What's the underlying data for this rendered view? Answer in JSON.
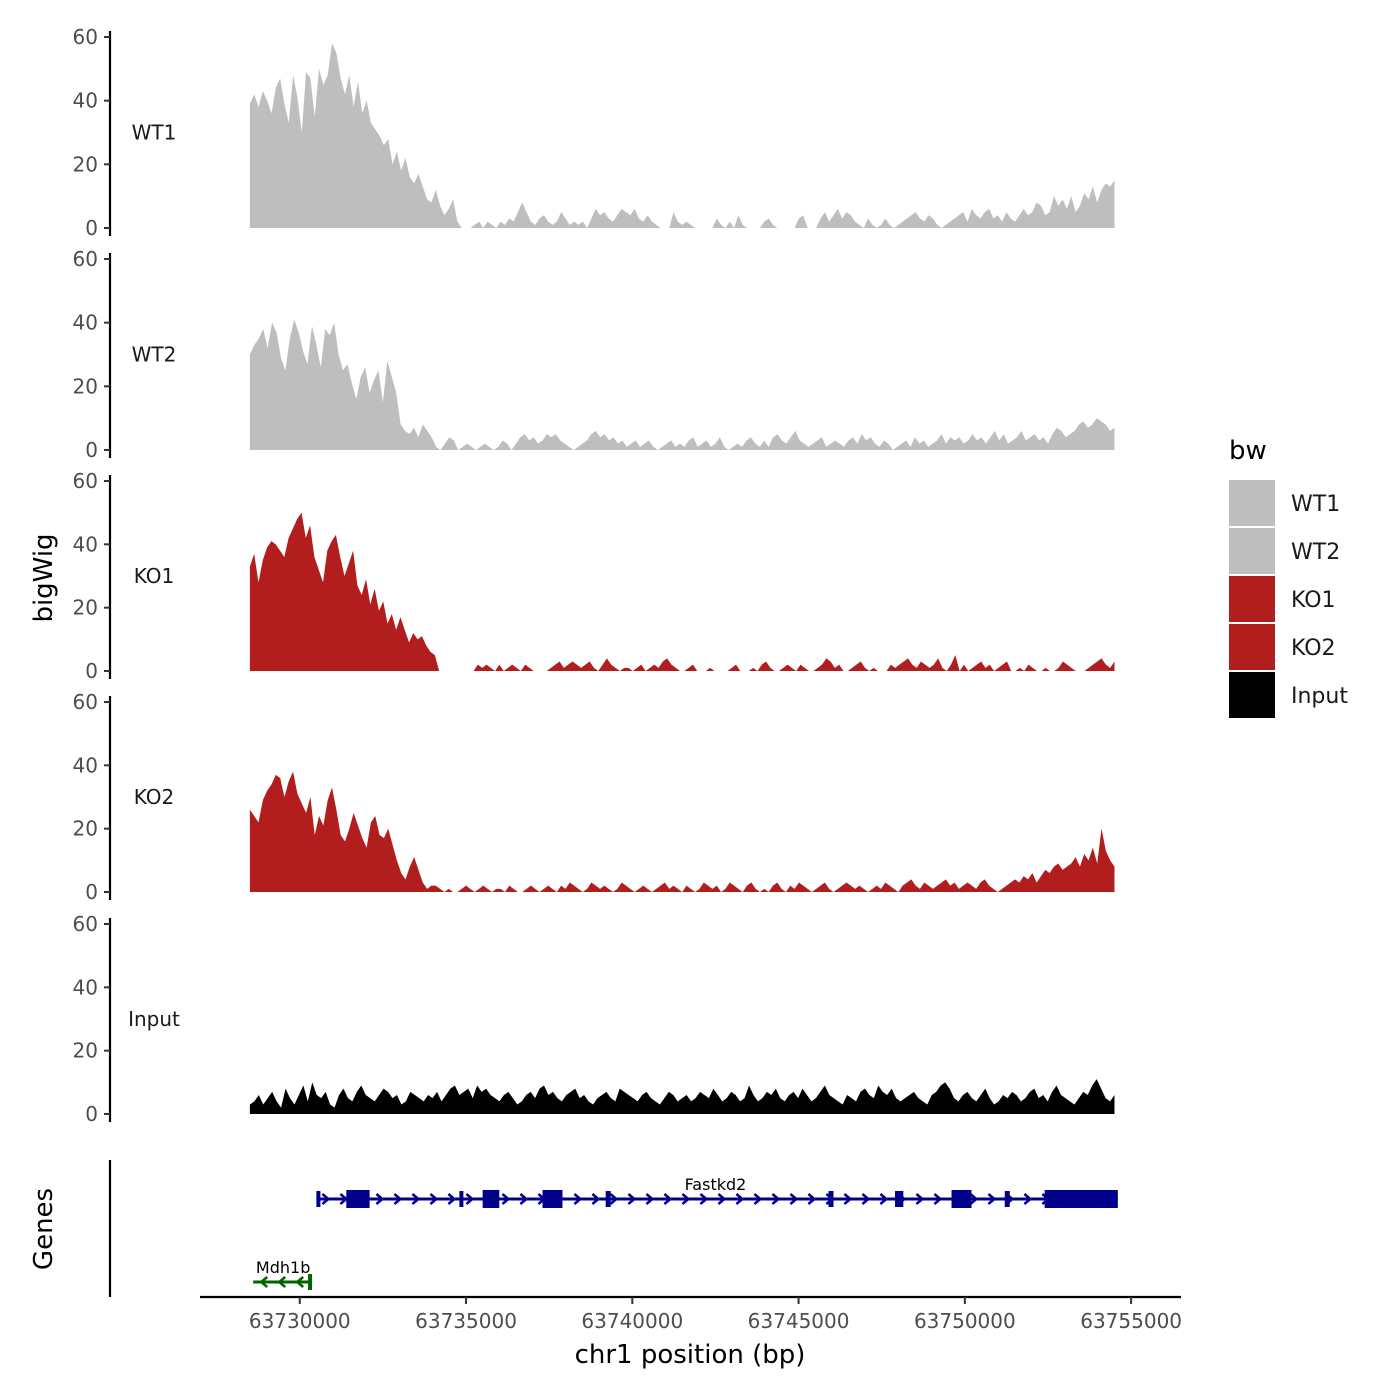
{
  "chart_data": {
    "type": "area",
    "chromosome": "chr1",
    "xlabel": "chr1 position (bp)",
    "ylabel": "bigWig",
    "genes_panel_label": "Genes",
    "xlim": [
      63727000,
      63756500
    ],
    "data_start": 63728500,
    "data_end": 63754500,
    "x_ticks": [
      63730000,
      63735000,
      63740000,
      63745000,
      63750000,
      63755000
    ],
    "x_tick_labels": [
      "63730000",
      "63735000",
      "63740000",
      "63745000",
      "63750000",
      "63755000"
    ],
    "ylim": [
      0,
      60
    ],
    "y_ticks": [
      0,
      20,
      40,
      60
    ],
    "y_tick_labels": [
      "0",
      "20",
      "40",
      "60"
    ],
    "legend": {
      "title": "bw",
      "entries": [
        {
          "label": "WT1",
          "color": "#BEBEBE"
        },
        {
          "label": "WT2",
          "color": "#BEBEBE"
        },
        {
          "label": "KO1",
          "color": "#B21E1E"
        },
        {
          "label": "KO2",
          "color": "#B21E1E"
        },
        {
          "label": "Input",
          "color": "#000000"
        }
      ]
    },
    "series": [
      {
        "name": "WT1",
        "color": "#BEBEBE",
        "values": [
          39,
          42,
          38,
          43,
          40,
          36,
          44,
          47,
          39,
          33,
          48,
          41,
          30,
          49,
          47,
          35,
          50,
          45,
          48,
          58,
          55,
          47,
          42,
          48,
          38,
          46,
          36,
          40,
          33,
          31,
          29,
          26,
          28,
          20,
          24,
          18,
          22,
          16,
          14,
          17,
          13,
          9,
          8,
          12,
          7,
          4,
          6,
          9,
          2,
          0,
          0,
          0,
          1,
          2,
          0,
          2,
          1,
          0,
          2,
          1,
          3,
          2,
          5,
          8,
          5,
          2,
          1,
          3,
          4,
          2,
          1,
          2,
          5,
          3,
          1,
          2,
          1,
          2,
          0,
          3,
          6,
          4,
          5,
          3,
          2,
          4,
          6,
          5,
          4,
          6,
          3,
          2,
          4,
          2,
          1,
          0,
          0,
          0,
          5,
          2,
          1,
          2,
          1,
          0,
          0,
          0,
          0,
          0,
          3,
          1,
          0,
          2,
          0,
          4,
          1,
          0,
          0,
          0,
          0,
          2,
          3,
          1,
          0,
          0,
          0,
          0,
          0,
          3,
          4,
          0,
          0,
          0,
          3,
          5,
          2,
          4,
          6,
          3,
          5,
          4,
          2,
          1,
          0,
          3,
          1,
          0,
          1,
          3,
          1,
          0,
          1,
          2,
          3,
          4,
          5,
          3,
          2,
          4,
          3,
          1,
          0,
          1,
          2,
          3,
          4,
          5,
          2,
          6,
          4,
          3,
          5,
          6,
          3,
          4,
          2,
          5,
          3,
          2,
          4,
          6,
          4,
          5,
          8,
          7,
          4,
          5,
          10,
          7,
          9,
          6,
          10,
          5,
          7,
          11,
          9,
          13,
          8,
          12,
          14,
          13,
          15
        ]
      },
      {
        "name": "WT2",
        "color": "#BEBEBE",
        "values": [
          30,
          33,
          35,
          38,
          32,
          40,
          37,
          29,
          25,
          35,
          41,
          37,
          31,
          27,
          39,
          33,
          26,
          38,
          36,
          40,
          30,
          25,
          27,
          21,
          16,
          23,
          26,
          18,
          22,
          25,
          15,
          28,
          23,
          18,
          8,
          6,
          5,
          7,
          4,
          8,
          6,
          4,
          1,
          0,
          2,
          4,
          3,
          0,
          1,
          2,
          1,
          0,
          1,
          2,
          1,
          0,
          1,
          3,
          2,
          0,
          2,
          4,
          5,
          3,
          4,
          2,
          3,
          5,
          4,
          5,
          3,
          2,
          1,
          0,
          1,
          2,
          3,
          5,
          6,
          4,
          5,
          3,
          4,
          2,
          3,
          1,
          2,
          3,
          1,
          2,
          3,
          1,
          0,
          1,
          2,
          3,
          1,
          2,
          1,
          3,
          4,
          1,
          2,
          3,
          1,
          2,
          4,
          1,
          0,
          1,
          2,
          1,
          3,
          4,
          2,
          1,
          3,
          1,
          4,
          5,
          3,
          2,
          4,
          6,
          3,
          2,
          1,
          2,
          3,
          4,
          1,
          2,
          3,
          2,
          1,
          3,
          4,
          2,
          5,
          3,
          4,
          2,
          1,
          3,
          2,
          0,
          1,
          2,
          3,
          1,
          4,
          2,
          3,
          1,
          2,
          3,
          5,
          2,
          4,
          3,
          4,
          2,
          3,
          5,
          3,
          4,
          2,
          4,
          6,
          3,
          5,
          2,
          3,
          4,
          6,
          3,
          4,
          5,
          3,
          4,
          2,
          5,
          7,
          6,
          4,
          5,
          6,
          8,
          9,
          7,
          8,
          10,
          9,
          8,
          6,
          7
        ]
      },
      {
        "name": "KO1",
        "color": "#B21E1E",
        "values": [
          33,
          37,
          28,
          35,
          39,
          41,
          40,
          38,
          36,
          42,
          45,
          48,
          50,
          42,
          46,
          36,
          32,
          28,
          38,
          41,
          43,
          36,
          30,
          34,
          38,
          27,
          24,
          29,
          21,
          26,
          19,
          22,
          15,
          18,
          13,
          17,
          13,
          9,
          12,
          10,
          11,
          8,
          6,
          5,
          0,
          0,
          0,
          0,
          0,
          0,
          0,
          0,
          0,
          2,
          1,
          2,
          1,
          0,
          2,
          0,
          1,
          2,
          1,
          0,
          2,
          1,
          0,
          0,
          0,
          0,
          1,
          2,
          3,
          1,
          2,
          3,
          2,
          1,
          2,
          3,
          1,
          0,
          2,
          4,
          2,
          1,
          0,
          1,
          1,
          0,
          1,
          2,
          0,
          1,
          2,
          1,
          3,
          4,
          2,
          1,
          0,
          0,
          1,
          2,
          0,
          0,
          0,
          1,
          0,
          0,
          0,
          0,
          1,
          2,
          0,
          0,
          0,
          1,
          0,
          2,
          3,
          1,
          0,
          0,
          1,
          2,
          1,
          0,
          2,
          1,
          0,
          0,
          1,
          2,
          4,
          3,
          1,
          2,
          0,
          0,
          1,
          2,
          3,
          1,
          0,
          1,
          0,
          0,
          0,
          2,
          1,
          2,
          3,
          4,
          2,
          1,
          3,
          2,
          1,
          2,
          4,
          1,
          0,
          2,
          5,
          0,
          2,
          0,
          1,
          2,
          3,
          1,
          2,
          0,
          1,
          2,
          3,
          0,
          0,
          1,
          0,
          2,
          1,
          0,
          0,
          1,
          0,
          0,
          1,
          3,
          2,
          1,
          0,
          0,
          0,
          1,
          2,
          3,
          4,
          2,
          1,
          3
        ]
      },
      {
        "name": "KO2",
        "color": "#B21E1E",
        "values": [
          26,
          24,
          22,
          29,
          32,
          34,
          37,
          36,
          30,
          35,
          38,
          31,
          28,
          25,
          30,
          18,
          24,
          21,
          29,
          33,
          26,
          18,
          16,
          20,
          25,
          21,
          17,
          14,
          22,
          24,
          18,
          17,
          20,
          15,
          10,
          6,
          4,
          8,
          11,
          7,
          3,
          1,
          2,
          2,
          1,
          0,
          1,
          0,
          0,
          1,
          2,
          1,
          0,
          1,
          2,
          1,
          0,
          1,
          1,
          0,
          2,
          1,
          0,
          0,
          1,
          2,
          1,
          0,
          1,
          2,
          1,
          0,
          2,
          1,
          3,
          2,
          1,
          0,
          1,
          3,
          2,
          1,
          2,
          1,
          0,
          1,
          3,
          2,
          1,
          0,
          1,
          2,
          1,
          0,
          1,
          2,
          3,
          1,
          2,
          1,
          0,
          2,
          1,
          0,
          1,
          3,
          2,
          1,
          2,
          0,
          1,
          3,
          2,
          1,
          0,
          2,
          3,
          1,
          0,
          1,
          0,
          2,
          3,
          1,
          0,
          2,
          1,
          3,
          2,
          1,
          0,
          1,
          2,
          3,
          1,
          0,
          1,
          2,
          3,
          2,
          1,
          2,
          1,
          0,
          1,
          2,
          1,
          3,
          2,
          1,
          0,
          2,
          3,
          4,
          2,
          1,
          3,
          2,
          1,
          2,
          3,
          4,
          2,
          3,
          1,
          2,
          3,
          2,
          1,
          3,
          4,
          2,
          1,
          0,
          1,
          2,
          3,
          4,
          3,
          5,
          4,
          6,
          3,
          5,
          7,
          6,
          8,
          9,
          7,
          8,
          9,
          11,
          8,
          12,
          10,
          14,
          9,
          20,
          13,
          10,
          8
        ]
      },
      {
        "name": "Input",
        "color": "#000000",
        "values": [
          3,
          4,
          6,
          3,
          5,
          7,
          4,
          2,
          8,
          5,
          3,
          6,
          9,
          4,
          10,
          6,
          5,
          7,
          3,
          2,
          6,
          8,
          5,
          4,
          7,
          9,
          6,
          5,
          4,
          6,
          8,
          7,
          5,
          6,
          3,
          4,
          7,
          6,
          5,
          4,
          6,
          5,
          7,
          4,
          6,
          8,
          9,
          6,
          7,
          8,
          5,
          9,
          7,
          8,
          6,
          5,
          4,
          6,
          7,
          5,
          3,
          4,
          6,
          7,
          5,
          8,
          9,
          6,
          7,
          5,
          4,
          6,
          7,
          8,
          5,
          6,
          4,
          3,
          5,
          6,
          7,
          5,
          4,
          8,
          7,
          6,
          5,
          4,
          6,
          7,
          5,
          4,
          3,
          5,
          7,
          6,
          4,
          5,
          6,
          4,
          5,
          7,
          6,
          5,
          8,
          6,
          4,
          5,
          7,
          6,
          4,
          5,
          9,
          6,
          4,
          5,
          7,
          6,
          8,
          5,
          4,
          6,
          7,
          5,
          8,
          6,
          4,
          5,
          7,
          9,
          6,
          5,
          4,
          3,
          6,
          5,
          4,
          7,
          8,
          6,
          5,
          9,
          7,
          6,
          8,
          5,
          4,
          5,
          6,
          7,
          5,
          4,
          3,
          6,
          7,
          9,
          10,
          8,
          5,
          4,
          6,
          7,
          5,
          4,
          6,
          8,
          5,
          3,
          4,
          6,
          5,
          7,
          6,
          4,
          5,
          7,
          8,
          5,
          6,
          4,
          7,
          9,
          6,
          5,
          4,
          3,
          5,
          7,
          6,
          9,
          11,
          8,
          5,
          4,
          6
        ]
      }
    ],
    "genes": [
      {
        "name": "Fastkd2",
        "strand": "+",
        "color": "#00008B",
        "start": 63730500,
        "end": 63754600,
        "exons": [
          [
            63730500,
            63730550
          ],
          [
            63731400,
            63732100
          ],
          [
            63734800,
            63734900
          ],
          [
            63735500,
            63736000
          ],
          [
            63737300,
            63737900
          ],
          [
            63739200,
            63739350
          ],
          [
            63745900,
            63746050
          ],
          [
            63747900,
            63748150
          ],
          [
            63749600,
            63750200
          ],
          [
            63751200,
            63751350
          ],
          [
            63752400,
            63754600
          ]
        ]
      },
      {
        "name": "Mdh1b",
        "strand": "-",
        "color": "#006400",
        "start": 63728600,
        "end": 63730300,
        "exons": [
          [
            63730250,
            63730300
          ]
        ]
      }
    ]
  }
}
